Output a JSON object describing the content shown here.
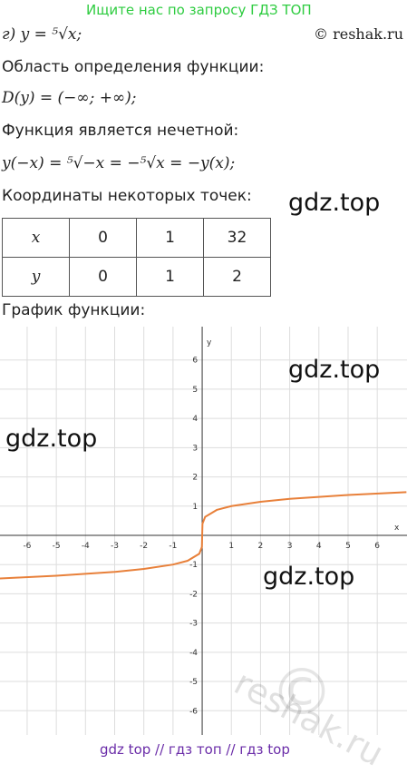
{
  "header": {
    "banner": "Ищите нас по запросу ГДЗ ТОП",
    "copyright": "© reshak.ru"
  },
  "lines": [
    "г) y = ⁵√x;",
    "Область определения функции:",
    "D(y) = (−∞; +∞);",
    "Функция является нечетной:",
    "y(−x) = ⁵√−x = −⁵√x = −y(x);",
    "Координаты некоторых точек:"
  ],
  "table": {
    "rows": [
      [
        "x",
        "0",
        "1",
        "32"
      ],
      [
        "y",
        "0",
        "1",
        "2"
      ]
    ]
  },
  "graph_caption": "График функции:",
  "watermarks": [
    "gdz.top",
    "gdz.top",
    "gdz.top",
    "gdz.top",
    "reshak.ru",
    "©"
  ],
  "chart_data": {
    "type": "line",
    "x_label": "x",
    "y_label": "y",
    "x": [
      -7,
      -5,
      -3,
      -2,
      -1,
      -0.5,
      -0.1,
      -0.01,
      0,
      0.01,
      0.1,
      0.5,
      1,
      2,
      3,
      5,
      7
    ],
    "series": [
      {
        "name": "y = ⁵√x",
        "color": "#e8803a",
        "values": [
          -1.48,
          -1.38,
          -1.25,
          -1.15,
          -1,
          -0.87,
          -0.63,
          -0.4,
          0,
          0.4,
          0.63,
          0.87,
          1,
          1.15,
          1.25,
          1.38,
          1.48
        ]
      }
    ],
    "xlim": [
      -6.93,
      7.02
    ],
    "ylim": [
      -6.83,
      7.14
    ],
    "xticks": [
      -6,
      -5,
      -4,
      -3,
      -2,
      -1,
      1,
      2,
      3,
      4,
      5,
      6
    ],
    "yticks": [
      -6,
      -5,
      -4,
      -3,
      -2,
      -1,
      1,
      2,
      3,
      4,
      5,
      6
    ],
    "grid": true
  },
  "footer": "gdz top  //  гдз топ  //  гдз top"
}
